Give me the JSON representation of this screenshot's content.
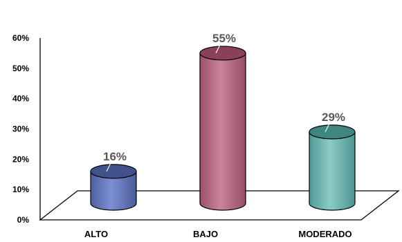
{
  "chart_data": {
    "type": "bar",
    "style": "3d-cylinder",
    "categories": [
      "ALTO",
      "BAJO",
      "MODERADO"
    ],
    "values": [
      16,
      55,
      29
    ],
    "data_labels": [
      "16%",
      "55%",
      "29%"
    ],
    "colors": [
      "#6a7fc4",
      "#b86f86",
      "#72b9b5"
    ],
    "ylim": [
      0,
      60
    ],
    "yticks": [
      "0%",
      "10%",
      "20%",
      "30%",
      "40%",
      "50%",
      "60%"
    ],
    "grid": false,
    "legend": "none"
  }
}
